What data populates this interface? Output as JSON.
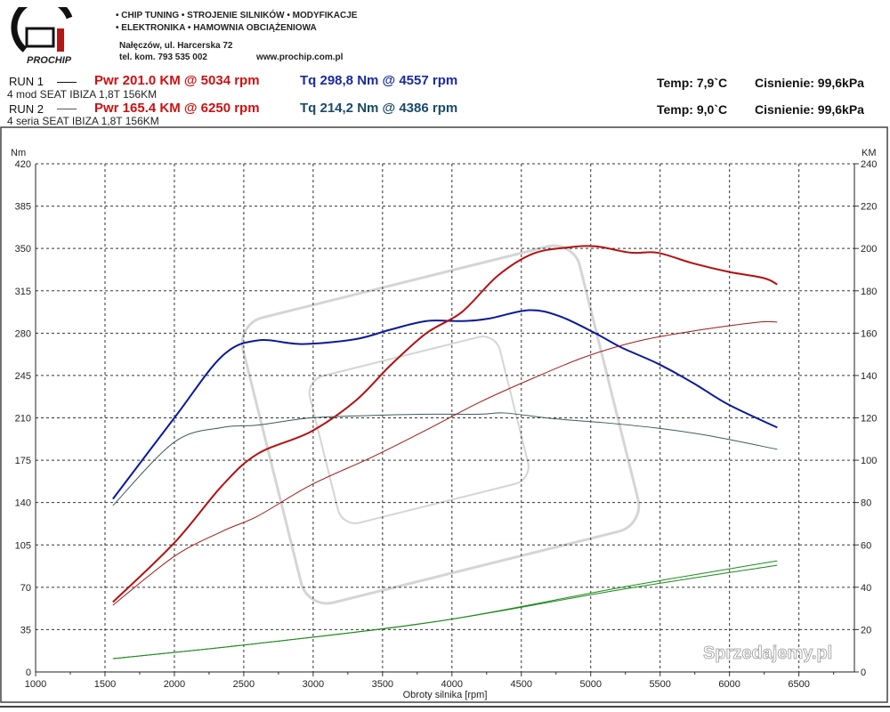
{
  "header": {
    "logo_text": "PROCHIP",
    "line1": "• CHIP TUNING • STROJENIE SILNIKÓW • MODYFIKACJE",
    "line2": "• ELEKTRONIKA • HAMOWNIA OBCIĄŻENIOWA",
    "address": "Nałęczów, ul. Harcerska 72",
    "phone": "tel. kom. 793 535 002",
    "website": "www.prochip.com.pl"
  },
  "runs": [
    {
      "label": "RUN 1",
      "desc": "4 mod SEAT IBIZA 1,8T  156KM",
      "pwr": "Pwr  201.0 KM @ 5034 rpm",
      "tq": "Tq 298,8 Nm @ 4557 rpm",
      "temp": "Temp: 7,9`C",
      "pressure": "Cisnienie: 99,6kPa"
    },
    {
      "label": "RUN 2",
      "desc": "4 seria SEAT IBIZA 1,8T  156KM",
      "pwr": "Pwr  165.4 KM @ 6250 rpm",
      "tq": "Tq 214,2 Nm @ 4386 rpm",
      "temp": "Temp: 9,0`C",
      "pressure": "Cisnienie: 99,6kPa"
    }
  ],
  "watermark": "Sprzedajemy.pl",
  "colors": {
    "pwr_text": "#cc1111",
    "tq1_text": "#1a2aa0",
    "tq2_text": "#1a4a6a",
    "run1_torque": "#0b1a99",
    "run1_power": "#b31010",
    "run2_torque": "#3d5a5a",
    "run2_power": "#a01818",
    "loss": "#1a8a1a"
  },
  "chart_data": {
    "type": "line",
    "xlabel": "Obroty silnika [rpm]",
    "ylabel": "Nm",
    "y2label": "KM",
    "xlim": [
      1000,
      6900
    ],
    "ylim": [
      0,
      420
    ],
    "y2lim": [
      0,
      240
    ],
    "xticks": [
      1000,
      1500,
      2000,
      2500,
      3000,
      3500,
      4000,
      4500,
      5000,
      5500,
      6000,
      6500
    ],
    "yticks": [
      0,
      35,
      70,
      105,
      140,
      175,
      210,
      245,
      280,
      315,
      350,
      385,
      420
    ],
    "y2ticks": [
      0,
      20,
      40,
      60,
      80,
      100,
      120,
      140,
      160,
      180,
      200,
      220,
      240
    ],
    "grid": true,
    "series": [
      {
        "id": "run1-torque",
        "axis": "y",
        "width": 2,
        "color": "#0b1a99",
        "x": [
          1557,
          2000,
          2344,
          2600,
          2920,
          3304,
          3560,
          3816,
          4072,
          4264,
          4557,
          4776,
          5032,
          5224,
          5480,
          5736,
          5992,
          6344
        ],
        "y": [
          143,
          210,
          261,
          274,
          271,
          275,
          283,
          290,
          290,
          292,
          299,
          294,
          280,
          268,
          255,
          239,
          221,
          202
        ]
      },
      {
        "id": "run1-power",
        "axis": "y2",
        "width": 2,
        "color": "#b31010",
        "x": [
          1557,
          2000,
          2344,
          2600,
          2984,
          3304,
          3560,
          3816,
          4072,
          4328,
          4584,
          4840,
          5034,
          5288,
          5480,
          5736,
          5992,
          6248,
          6344
        ],
        "y": [
          33,
          61,
          88,
          103,
          113.5,
          128,
          145,
          160,
          170,
          187,
          197.5,
          200.5,
          201,
          198,
          198,
          193,
          189,
          186,
          183
        ]
      },
      {
        "id": "run2-torque",
        "axis": "y",
        "width": 1,
        "color": "#3d5a5a",
        "x": [
          1557,
          2000,
          2344,
          2600,
          2984,
          3432,
          3816,
          4200,
          4386,
          4712,
          5096,
          5480,
          5864,
          6344
        ],
        "y": [
          137.5,
          190,
          202,
          204,
          210,
          212,
          213,
          213,
          214,
          209.5,
          206,
          201.5,
          195,
          184
        ]
      },
      {
        "id": "run2-power",
        "axis": "y2",
        "width": 1,
        "color": "#a01818",
        "x": [
          1557,
          2000,
          2344,
          2600,
          2984,
          3432,
          3816,
          4200,
          4584,
          4968,
          5352,
          5736,
          6056,
          6250,
          6344
        ],
        "y": [
          31.5,
          54.6,
          66.4,
          73.6,
          88.3,
          101.7,
          114.3,
          127.4,
          138.7,
          149,
          156.4,
          161,
          164,
          165.4,
          165.2
        ]
      },
      {
        "id": "run1-loss",
        "axis": "y2",
        "width": 1,
        "color": "#1a8a1a",
        "x": [
          1557,
          2664,
          3944,
          5224,
          6344
        ],
        "y": [
          6.3,
          13.9,
          24.4,
          39,
          50.4
        ]
      },
      {
        "id": "run2-loss",
        "axis": "y2",
        "width": 1,
        "color": "#1a8a1a",
        "x": [
          1557,
          2664,
          3944,
          5224,
          6344
        ],
        "y": [
          6.3,
          13.9,
          24.4,
          40,
          52.5
        ]
      }
    ]
  }
}
